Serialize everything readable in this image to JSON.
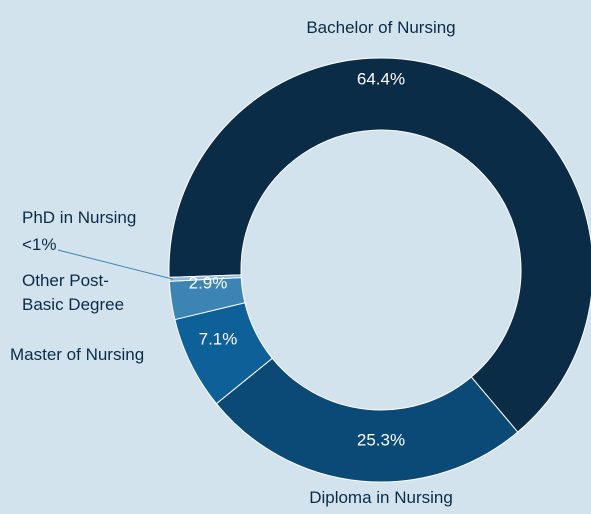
{
  "chart_data": {
    "type": "donut",
    "categories": [
      "Bachelor of Nursing",
      "Diploma in Nursing",
      "Master of Nursing",
      "Other Post-Basic Degree",
      "PhD in Nursing"
    ],
    "values": [
      64.4,
      25.3,
      7.1,
      2.9,
      0.3
    ],
    "value_labels": [
      "64.4%",
      "25.3%",
      "7.1%",
      "2.9%",
      "<1%"
    ],
    "colors": [
      "#0b2c47",
      "#0b4a76",
      "#0e6198",
      "#3b84b3",
      "#8fb9d6"
    ]
  }
}
